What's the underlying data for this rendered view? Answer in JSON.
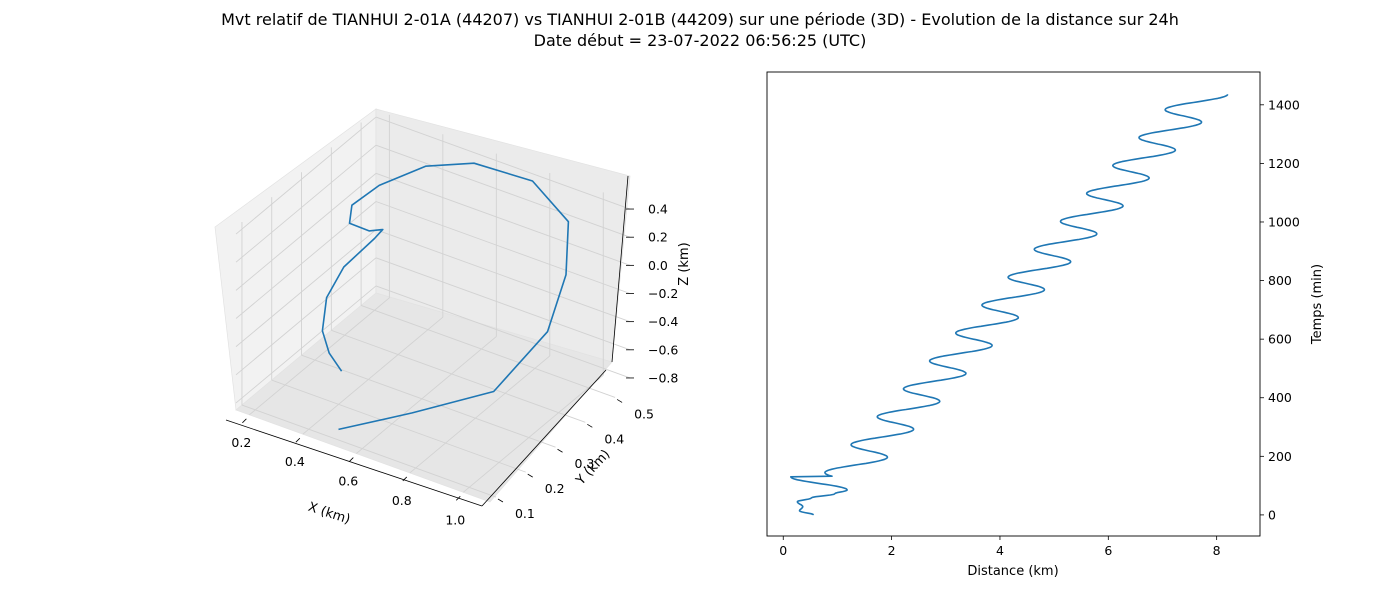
{
  "title": "Mvt relatif de TIANHUI 2-01A (44207) vs TIANHUI 2-01B (44209) sur une période (3D) - Evolution de la distance sur 24h",
  "subtitle": "Date début = 23-07-2022 06:56:25 (UTC)",
  "colors": {
    "series": "#1f77b4",
    "pane": "#f2f2f2",
    "grid": "#cccccc"
  },
  "chart_data": [
    {
      "type": "line3d",
      "xlabel": "X (km)",
      "ylabel": "Y (km)",
      "zlabel": "Z (km)",
      "xticks": [
        "0.2",
        "0.4",
        "0.6",
        "0.8",
        "1.0"
      ],
      "yticks": [
        "0.1",
        "0.2",
        "0.3",
        "0.4",
        "0.5"
      ],
      "zticks": [
        "0.4",
        "0.2",
        "0.0",
        "−0.2",
        "−0.4",
        "−0.6",
        "−0.8"
      ],
      "xlim": [
        0.15,
        1.1
      ],
      "ylim": [
        0.08,
        0.55
      ],
      "zlim": [
        -0.85,
        0.45
      ],
      "grid": true,
      "series": [
        {
          "points": [
            [
              0.5,
              0.11,
              -0.8
            ],
            [
              0.72,
              0.16,
              -0.62
            ],
            [
              0.98,
              0.2,
              -0.36
            ],
            [
              1.07,
              0.3,
              -0.05
            ],
            [
              1.05,
              0.38,
              0.2
            ],
            [
              0.97,
              0.46,
              0.38
            ],
            [
              0.78,
              0.51,
              0.45
            ],
            [
              0.55,
              0.52,
              0.4
            ],
            [
              0.38,
              0.51,
              0.28
            ],
            [
              0.24,
              0.48,
              0.1
            ],
            [
              0.16,
              0.46,
              -0.06
            ],
            [
              0.14,
              0.47,
              -0.22
            ],
            [
              0.18,
              0.5,
              -0.3
            ],
            [
              0.22,
              0.51,
              -0.28
            ],
            [
              0.2,
              0.5,
              -0.34
            ],
            [
              0.13,
              0.46,
              -0.52
            ],
            [
              0.11,
              0.42,
              -0.68
            ],
            [
              0.15,
              0.37,
              -0.8
            ],
            [
              0.22,
              0.33,
              -0.84
            ],
            [
              0.3,
              0.3,
              -0.86
            ]
          ]
        }
      ]
    },
    {
      "type": "line",
      "xlabel": "Distance (km)",
      "ylabel": "Temps (min)",
      "xlim": [
        -0.3,
        8.8
      ],
      "ylim": [
        -72,
        1512
      ],
      "xticks": [
        0,
        2,
        4,
        6,
        8
      ],
      "yticks": [
        0,
        200,
        400,
        600,
        800,
        1000,
        1200,
        1400
      ],
      "yaxis_side": "right",
      "grid": false,
      "series": [
        {
          "time_min": {
            "start": 0,
            "end": 1436,
            "step": 2
          },
          "distance_km": {
            "trend_start": 0.48,
            "trend_slope_per_min": 0.00507,
            "amplitude": 0.45,
            "period_min": 95.3,
            "phase_deg": 75,
            "first_minima": [
              [
                0,
                0.56
              ],
              [
                14,
                0.3
              ],
              [
                28,
                0.36
              ],
              [
                45,
                0.26
              ],
              [
                58,
                0.52
              ],
              [
                72,
                0.95
              ],
              [
                85,
                1.18
              ],
              [
                130,
                0.14
              ]
            ]
          }
        }
      ]
    }
  ]
}
